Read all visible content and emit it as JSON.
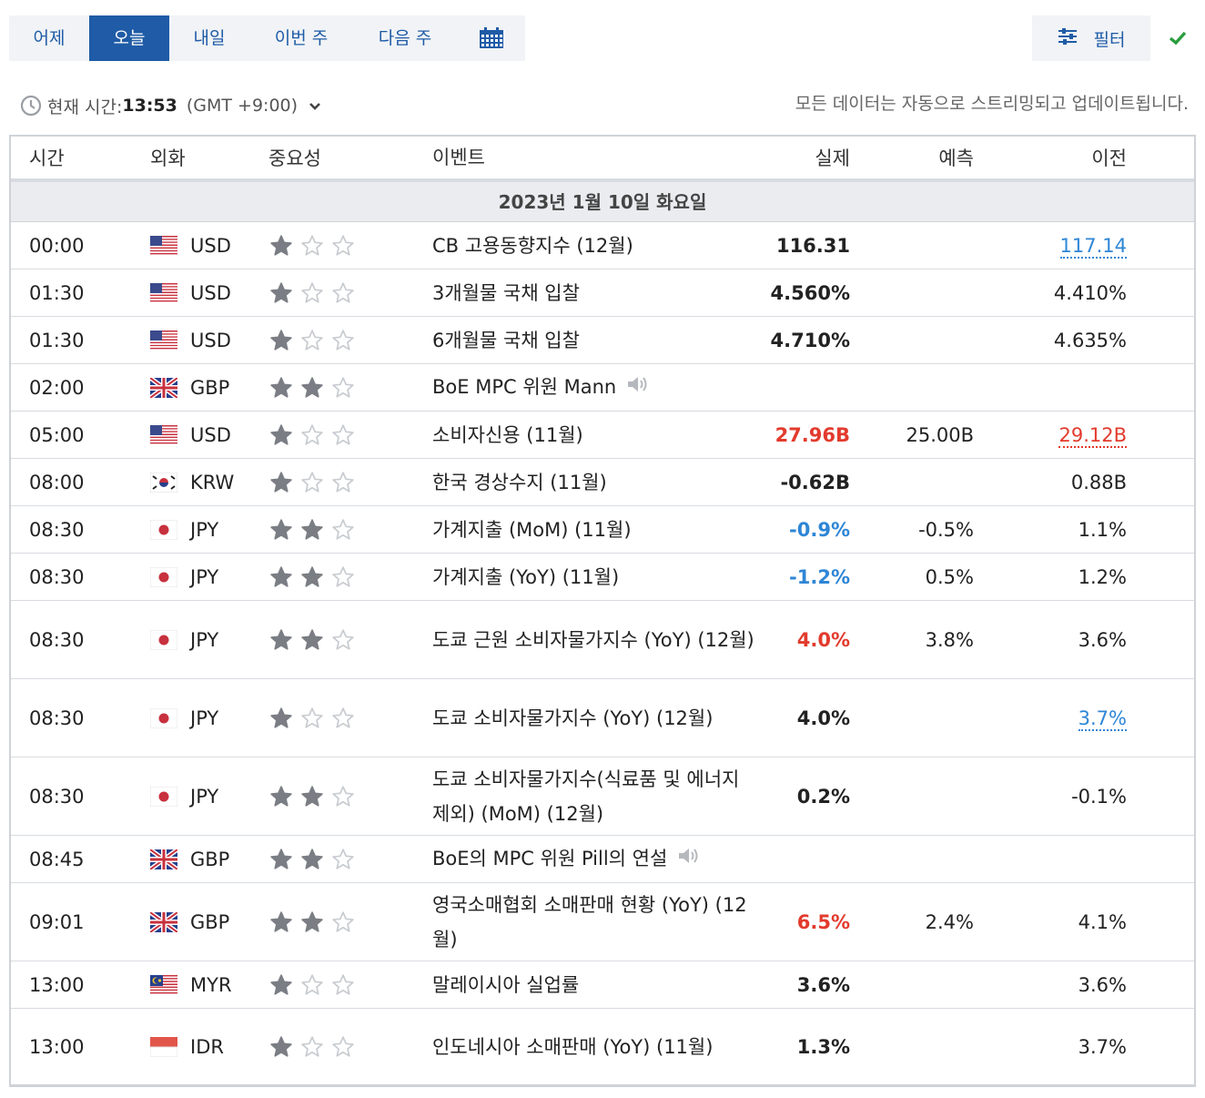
{
  "tabs": [
    {
      "label": "어제",
      "width": 88
    },
    {
      "label": "오늘",
      "width": 88,
      "active": true
    },
    {
      "label": "내일",
      "width": 88
    },
    {
      "label": "이번 주",
      "width": 114
    },
    {
      "label": "다음 주",
      "width": 114
    }
  ],
  "calendar_icon": "calendar-icon",
  "filter": {
    "label": "필터",
    "icon": "sliders-icon"
  },
  "check_icon": "checkmark-icon",
  "time_bar": {
    "label": "현재 시간:",
    "now": "13:53",
    "timezone": "(GMT +9:00)",
    "stream_note": "모든 데이터는 자동으로 스트리밍되고 업데이트됩니다."
  },
  "columns": {
    "time": "시간",
    "currency": "외화",
    "importance": "중요성",
    "event": "이벤트",
    "actual": "실제",
    "forecast": "예측",
    "previous": "이전"
  },
  "date_header": "2023년 1월 10일 화요일",
  "colors": {
    "accent": "#1f5ba6",
    "red": "#e23b2d",
    "blue": "#2e86d6",
    "green": "#2a9d3f",
    "star_filled": "#7a7e84",
    "star_empty": "#c8ccd1"
  },
  "rows": [
    {
      "time": "00:00",
      "flag": "us",
      "currency": "USD",
      "stars": 1,
      "event": "CB 고용동향지수 (12월)",
      "actual": "116.31",
      "actual_color": "",
      "forecast": "",
      "previous": "117.14",
      "previous_style": "link",
      "h": 52
    },
    {
      "time": "01:30",
      "flag": "us",
      "currency": "USD",
      "stars": 1,
      "event": "3개월물 국채 입찰",
      "actual": "4.560%",
      "actual_color": "",
      "forecast": "",
      "previous": "4.410%",
      "previous_style": "",
      "h": 52
    },
    {
      "time": "01:30",
      "flag": "us",
      "currency": "USD",
      "stars": 1,
      "event": "6개월물 국채 입찰",
      "actual": "4.710%",
      "actual_color": "",
      "forecast": "",
      "previous": "4.635%",
      "previous_style": "",
      "h": 52
    },
    {
      "time": "02:00",
      "flag": "gb",
      "currency": "GBP",
      "stars": 2,
      "event": "BoE MPC 위원 Mann",
      "speaker": true,
      "actual": "",
      "actual_color": "",
      "forecast": "",
      "previous": "",
      "previous_style": "",
      "h": 52
    },
    {
      "time": "05:00",
      "flag": "us",
      "currency": "USD",
      "stars": 1,
      "event": "소비자신용 (11월)",
      "actual": "27.96B",
      "actual_color": "red",
      "forecast": "25.00B",
      "previous": "29.12B",
      "previous_style": "red",
      "h": 52
    },
    {
      "time": "08:00",
      "flag": "kr",
      "currency": "KRW",
      "stars": 1,
      "event": "한국 경상수지 (11월)",
      "actual": "-0.62B",
      "actual_color": "",
      "forecast": "",
      "previous": "0.88B",
      "previous_style": "",
      "h": 52
    },
    {
      "time": "08:30",
      "flag": "jp",
      "currency": "JPY",
      "stars": 2,
      "event": "가계지출 (MoM) (11월)",
      "actual": "-0.9%",
      "actual_color": "blue",
      "forecast": "-0.5%",
      "previous": "1.1%",
      "previous_style": "",
      "h": 52
    },
    {
      "time": "08:30",
      "flag": "jp",
      "currency": "JPY",
      "stars": 2,
      "event": "가계지출 (YoY) (11월)",
      "actual": "-1.2%",
      "actual_color": "blue",
      "forecast": "0.5%",
      "previous": "1.2%",
      "previous_style": "",
      "h": 52
    },
    {
      "time": "08:30",
      "flag": "jp",
      "currency": "JPY",
      "stars": 2,
      "event": "도쿄 근원 소비자물가지수 (YoY) (12월)",
      "actual": "4.0%",
      "actual_color": "red",
      "forecast": "3.8%",
      "previous": "3.6%",
      "previous_style": "",
      "h": 86
    },
    {
      "time": "08:30",
      "flag": "jp",
      "currency": "JPY",
      "stars": 1,
      "event": "도쿄 소비자물가지수 (YoY) (12월)",
      "actual": "4.0%",
      "actual_color": "",
      "forecast": "",
      "previous": "3.7%",
      "previous_style": "link",
      "h": 86
    },
    {
      "time": "08:30",
      "flag": "jp",
      "currency": "JPY",
      "stars": 2,
      "event": "도쿄 소비자물가지수(식료품 및 에너지 제외) (MoM) (12월)",
      "actual": "0.2%",
      "actual_color": "",
      "forecast": "",
      "previous": "-0.1%",
      "previous_style": "",
      "h": 86
    },
    {
      "time": "08:45",
      "flag": "gb",
      "currency": "GBP",
      "stars": 2,
      "event": "BoE의 MPC 위원 Pill의 연설",
      "speaker": true,
      "actual": "",
      "actual_color": "",
      "forecast": "",
      "previous": "",
      "previous_style": "",
      "h": 52
    },
    {
      "time": "09:01",
      "flag": "gb",
      "currency": "GBP",
      "stars": 2,
      "event": "영국소매협회 소매판매 현황 (YoY) (12월)",
      "actual": "6.5%",
      "actual_color": "red",
      "forecast": "2.4%",
      "previous": "4.1%",
      "previous_style": "",
      "h": 86
    },
    {
      "time": "13:00",
      "flag": "my",
      "currency": "MYR",
      "stars": 1,
      "event": "말레이시아 실업률",
      "actual": "3.6%",
      "actual_color": "",
      "forecast": "",
      "previous": "3.6%",
      "previous_style": "",
      "h": 52
    },
    {
      "time": "13:00",
      "flag": "id",
      "currency": "IDR",
      "stars": 1,
      "event": "인도네시아 소매판매 (YoY) (11월)",
      "actual": "1.3%",
      "actual_color": "",
      "forecast": "",
      "previous": "3.7%",
      "previous_style": "",
      "h": 86,
      "last": true
    }
  ]
}
